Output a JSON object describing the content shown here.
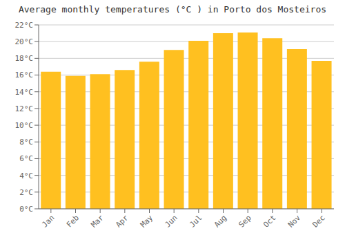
{
  "chart_data": {
    "type": "bar",
    "title": "Average monthly temperatures (°C ) in Porto dos Mosteiros",
    "categories": [
      "Jan",
      "Feb",
      "Mar",
      "Apr",
      "May",
      "Jun",
      "Jul",
      "Aug",
      "Sep",
      "Oct",
      "Nov",
      "Dec"
    ],
    "values": [
      16.4,
      15.9,
      16.1,
      16.6,
      17.6,
      19.0,
      20.1,
      21.0,
      21.1,
      20.4,
      19.1,
      17.7
    ],
    "color": "#FFC020",
    "ylim": [
      0,
      22
    ],
    "yticks": [
      {
        "value": 0,
        "label": "0°C"
      },
      {
        "value": 2,
        "label": "2°C"
      },
      {
        "value": 4,
        "label": "4°C"
      },
      {
        "value": 6,
        "label": "6°C"
      },
      {
        "value": 8,
        "label": "8°C"
      },
      {
        "value": 10,
        "label": "10°C"
      },
      {
        "value": 12,
        "label": "12°C"
      },
      {
        "value": 14,
        "label": "14°C"
      },
      {
        "value": 16,
        "label": "16°C"
      },
      {
        "value": 18,
        "label": "18°C"
      },
      {
        "value": 20,
        "label": "20°C"
      },
      {
        "value": 22,
        "label": "22°C"
      }
    ],
    "grid": true
  }
}
